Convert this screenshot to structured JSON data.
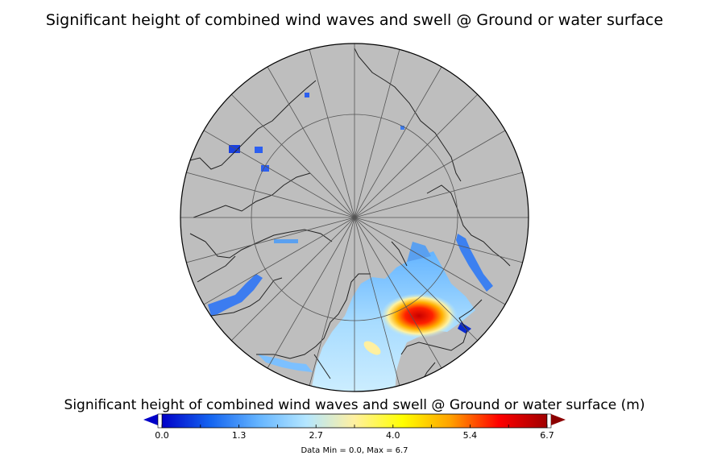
{
  "title": "Significant height of combined wind waves and swell @ Ground or water surface",
  "colorbar": {
    "label": "Significant height of combined wind waves and swell @ Ground or water surface (m)",
    "ticks": [
      "0.0",
      "1.3",
      "2.7",
      "4.0",
      "5.4",
      "6.7"
    ],
    "min": 0.0,
    "max": 6.7,
    "colors": [
      "#0000c8",
      "#1464f0",
      "#64b4ff",
      "#b4e6ff",
      "#fff0a0",
      "#ffff00",
      "#ffa000",
      "#ff0000",
      "#a00000"
    ],
    "under_color": "#0000c8",
    "over_color": "#8b0000"
  },
  "footnote": "Data Min = 0.0, Max = 6.7",
  "map": {
    "projection": "north-polar-stereographic",
    "land_color": "#bebebe",
    "ocean_colors": {
      "low": "#1450f0",
      "mid": "#b4e6ff",
      "high": "#e60000"
    }
  }
}
